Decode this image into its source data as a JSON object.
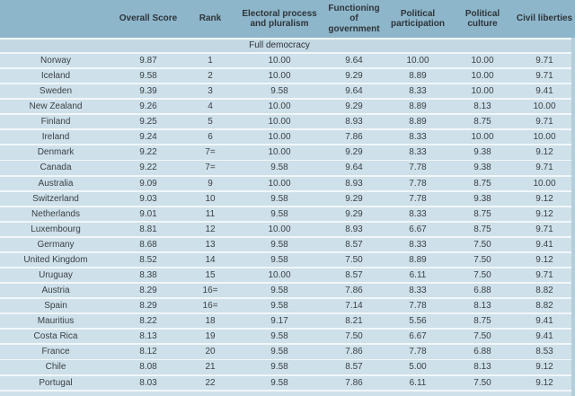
{
  "colors": {
    "header_bg": "#8db6ca",
    "band_bg": "#c3d8e3",
    "row_bg": "#cee0e9",
    "separator": "#f1f7fa",
    "header_text": "#2e3439",
    "body_text": "#3b4147",
    "edge_strip": "#b4cedb"
  },
  "chart_data": {
    "type": "table",
    "category_label": "Full democracy",
    "columns": [
      "",
      "Overall Score",
      "Rank",
      "Electoral process and pluralism",
      "Functioning of government",
      "Political participation",
      "Political culture",
      "Civil liberties"
    ],
    "rows": [
      [
        "Norway",
        "9.87",
        "1",
        "10.00",
        "9.64",
        "10.00",
        "10.00",
        "9.71"
      ],
      [
        "Iceland",
        "9.58",
        "2",
        "10.00",
        "9.29",
        "8.89",
        "10.00",
        "9.71"
      ],
      [
        "Sweden",
        "9.39",
        "3",
        "9.58",
        "9.64",
        "8.33",
        "10.00",
        "9.41"
      ],
      [
        "New Zealand",
        "9.26",
        "4",
        "10.00",
        "9.29",
        "8.89",
        "8.13",
        "10.00"
      ],
      [
        "Finland",
        "9.25",
        "5",
        "10.00",
        "8.93",
        "8.89",
        "8.75",
        "9.71"
      ],
      [
        "Ireland",
        "9.24",
        "6",
        "10.00",
        "7.86",
        "8.33",
        "10.00",
        "10.00"
      ],
      [
        "Denmark",
        "9.22",
        "7=",
        "10.00",
        "9.29",
        "8.33",
        "9.38",
        "9.12"
      ],
      [
        "Canada",
        "9.22",
        "7=",
        "9.58",
        "9.64",
        "7.78",
        "9.38",
        "9.71"
      ],
      [
        "Australia",
        "9.09",
        "9",
        "10.00",
        "8.93",
        "7.78",
        "8.75",
        "10.00"
      ],
      [
        "Switzerland",
        "9.03",
        "10",
        "9.58",
        "9.29",
        "7.78",
        "9.38",
        "9.12"
      ],
      [
        "Netherlands",
        "9.01",
        "11",
        "9.58",
        "9.29",
        "8.33",
        "8.75",
        "9.12"
      ],
      [
        "Luxembourg",
        "8.81",
        "12",
        "10.00",
        "8.93",
        "6.67",
        "8.75",
        "9.71"
      ],
      [
        "Germany",
        "8.68",
        "13",
        "9.58",
        "8.57",
        "8.33",
        "7.50",
        "9.41"
      ],
      [
        "United Kingdom",
        "8.52",
        "14",
        "9.58",
        "7.50",
        "8.89",
        "7.50",
        "9.12"
      ],
      [
        "Uruguay",
        "8.38",
        "15",
        "10.00",
        "8.57",
        "6.11",
        "7.50",
        "9.71"
      ],
      [
        "Austria",
        "8.29",
        "16=",
        "9.58",
        "7.86",
        "8.33",
        "6.88",
        "8.82"
      ],
      [
        "Spain",
        "8.29",
        "16=",
        "9.58",
        "7.14",
        "7.78",
        "8.13",
        "8.82"
      ],
      [
        "Mauritius",
        "8.22",
        "18",
        "9.17",
        "8.21",
        "5.56",
        "8.75",
        "9.41"
      ],
      [
        "Costa Rica",
        "8.13",
        "19",
        "9.58",
        "7.50",
        "6.67",
        "7.50",
        "9.41"
      ],
      [
        "France",
        "8.12",
        "20",
        "9.58",
        "7.86",
        "7.78",
        "6.88",
        "8.53"
      ],
      [
        "Chile",
        "8.08",
        "21",
        "9.58",
        "8.57",
        "5.00",
        "8.13",
        "9.12"
      ],
      [
        "Portugal",
        "8.03",
        "22",
        "9.58",
        "7.86",
        "6.11",
        "7.50",
        "9.12"
      ]
    ]
  }
}
